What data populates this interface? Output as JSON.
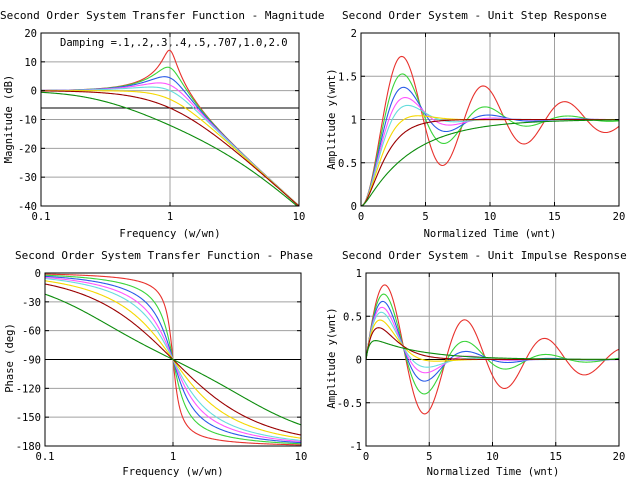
{
  "zetas": [
    0.1,
    0.2,
    0.3,
    0.4,
    0.5,
    0.707,
    1.0,
    2.0
  ],
  "colors": [
    "#e8322d",
    "#3ad43a",
    "#2a5be8",
    "#ff55ff",
    "#66dddd",
    "#f5d800",
    "#9b0000",
    "#0c8c0c"
  ],
  "chart_data": [
    {
      "type": "line",
      "title": "Second Order System Transfer Function - Magnitude",
      "xlabel": "Frequency (w/wn)",
      "ylabel": "Magnitude (dB)",
      "xscale": "log",
      "xlim": [
        0.1,
        10
      ],
      "ylim": [
        -40,
        20
      ],
      "xticks": [
        {
          "v": 0.1,
          "label": "0.1"
        },
        {
          "v": 1,
          "label": "1"
        },
        {
          "v": 10,
          "label": "10"
        }
      ],
      "yticks": [
        {
          "v": -40,
          "label": "-40"
        },
        {
          "v": -30,
          "label": "-30"
        },
        {
          "v": -20,
          "label": "-20"
        },
        {
          "v": -10,
          "label": "-10"
        },
        {
          "v": 0,
          "label": "0"
        },
        {
          "v": 10,
          "label": "10"
        },
        {
          "v": 20,
          "label": "20"
        }
      ],
      "hline": -6,
      "annotation": "Damping =.1,.2,.3,.4,.5,.707,1.0,2.0",
      "grid": true
    },
    {
      "type": "line",
      "title": "Second Order System - Unit Step Response",
      "xlabel": "Normalized Time (wnt)",
      "ylabel": "Amplitude y(wnt)",
      "xlim": [
        0,
        20
      ],
      "ylim": [
        0,
        2
      ],
      "xticks": [
        {
          "v": 0,
          "label": "0"
        },
        {
          "v": 5,
          "label": "5"
        },
        {
          "v": 10,
          "label": "10"
        },
        {
          "v": 15,
          "label": "15"
        },
        {
          "v": 20,
          "label": "20"
        }
      ],
      "yticks": [
        {
          "v": 0,
          "label": "0"
        },
        {
          "v": 0.5,
          "label": "0.5"
        },
        {
          "v": 1,
          "label": "1"
        },
        {
          "v": 1.5,
          "label": "1.5"
        },
        {
          "v": 2,
          "label": "2"
        }
      ],
      "grid": true
    },
    {
      "type": "line",
      "title": "Second Order System Transfer Function - Phase",
      "xlabel": "Frequency (w/wn)",
      "ylabel": "Phase (deg)",
      "xscale": "log",
      "xlim": [
        0.1,
        10
      ],
      "ylim": [
        -180,
        0
      ],
      "xticks": [
        {
          "v": 0.1,
          "label": "0.1"
        },
        {
          "v": 1,
          "label": "1"
        },
        {
          "v": 10,
          "label": "10"
        }
      ],
      "yticks": [
        {
          "v": -180,
          "label": "-180"
        },
        {
          "v": -150,
          "label": "-150"
        },
        {
          "v": -120,
          "label": "-120"
        },
        {
          "v": -90,
          "label": "-90"
        },
        {
          "v": -60,
          "label": "-60"
        },
        {
          "v": -30,
          "label": "-30"
        },
        {
          "v": 0,
          "label": "0"
        }
      ],
      "hline": -90,
      "grid": true
    },
    {
      "type": "line",
      "title": "Second Order System - Unit Impulse Response",
      "xlabel": "Normalized Time (wnt)",
      "ylabel": "Amplitude y(wnt)",
      "xlim": [
        0,
        20
      ],
      "ylim": [
        -1,
        1
      ],
      "xticks": [
        {
          "v": 0,
          "label": "0"
        },
        {
          "v": 5,
          "label": "5"
        },
        {
          "v": 10,
          "label": "10"
        },
        {
          "v": 15,
          "label": "15"
        },
        {
          "v": 20,
          "label": "20"
        }
      ],
      "yticks": [
        {
          "v": -1,
          "label": "-1"
        },
        {
          "v": -0.5,
          "label": "-0.5"
        },
        {
          "v": 0,
          "label": "0"
        },
        {
          "v": 0.5,
          "label": "0.5"
        },
        {
          "v": 1,
          "label": "1"
        }
      ],
      "hline": 0,
      "grid": true
    }
  ]
}
